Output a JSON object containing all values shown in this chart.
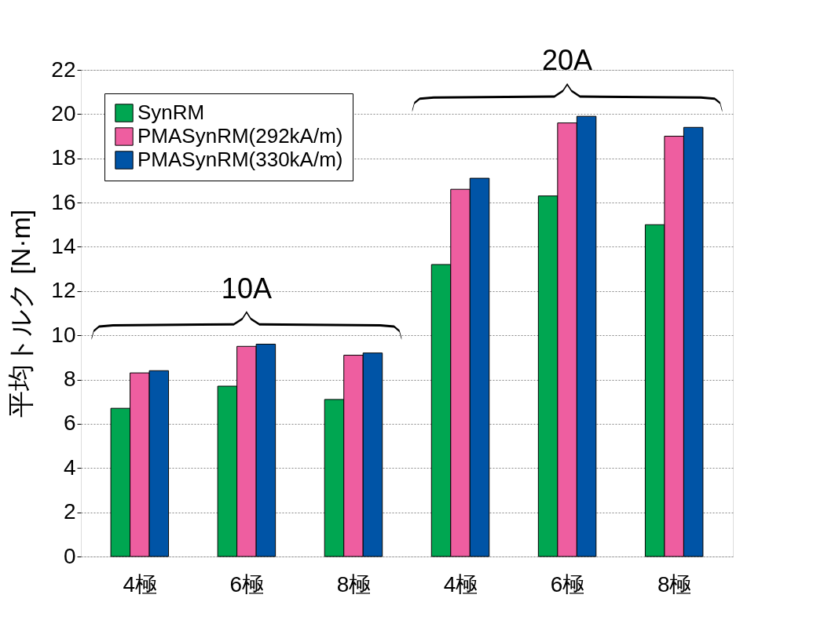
{
  "chart_data": {
    "type": "bar",
    "ylabel": "平均トルク [N·m]",
    "categories": [
      "4極",
      "6極",
      "8極",
      "4極",
      "6極",
      "8極"
    ],
    "series": [
      {
        "name": "SynRM",
        "color": "#00a651",
        "values": [
          6.7,
          7.7,
          7.1,
          13.2,
          16.3,
          15.0
        ]
      },
      {
        "name": "PMASynRM(292kA/m)",
        "color": "#ee5ea0",
        "values": [
          8.3,
          9.5,
          9.1,
          16.6,
          19.6,
          19.0
        ]
      },
      {
        "name": "PMASynRM(330kA/m)",
        "color": "#0054a6",
        "values": [
          8.4,
          9.6,
          9.2,
          17.1,
          19.9,
          19.4
        ]
      }
    ],
    "annotations": [
      "10A",
      "20A"
    ],
    "ylim": [
      0,
      22
    ],
    "yticks": [
      0,
      2,
      4,
      6,
      8,
      10,
      12,
      14,
      16,
      18,
      20,
      22
    ],
    "grid": "y",
    "legend": "top left"
  }
}
